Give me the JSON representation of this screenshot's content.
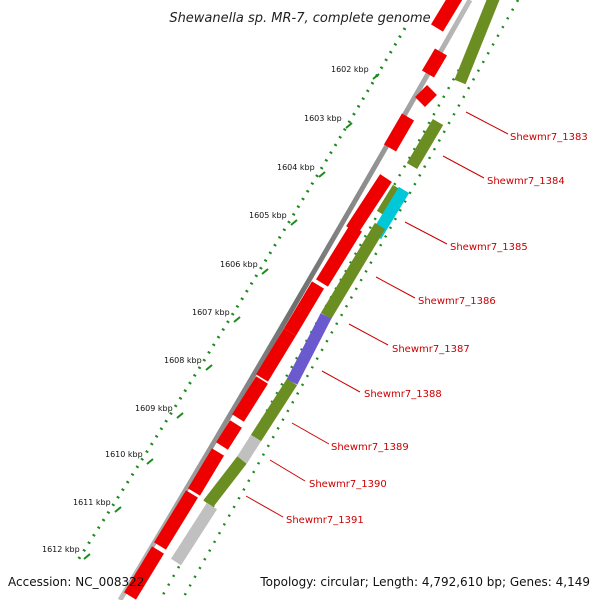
{
  "title": "Shewanella sp. MR-7, complete genome",
  "accession": "Accession: NC_008322",
  "topology": "Topology: circular; Length: 4,792,610 bp; Genes: 4,149",
  "kbp_ticks": [
    "1602 kbp",
    "1603 kbp",
    "1604 kbp",
    "1605 kbp",
    "1606 kbp",
    "1607 kbp",
    "1608 kbp",
    "1609 kbp",
    "1610 kbp",
    "1611 kbp",
    "1612 kbp"
  ],
  "gene_labels": [
    "Shewmr7_1383",
    "Shewmr7_1384",
    "Shewmr7_1385",
    "Shewmr7_1386",
    "Shewmr7_1387",
    "Shewmr7_1388",
    "Shewmr7_1389",
    "Shewmr7_1390",
    "Shewmr7_1391"
  ],
  "colors": {
    "cds": "#ee0000",
    "gene_green": "#6b8e23",
    "gene_cyan": "#00c8d8",
    "gene_purple": "#6a5acd",
    "gene_gray": "#c0c0c0",
    "dots": "#1e8a1e",
    "label": "#cc0000"
  }
}
